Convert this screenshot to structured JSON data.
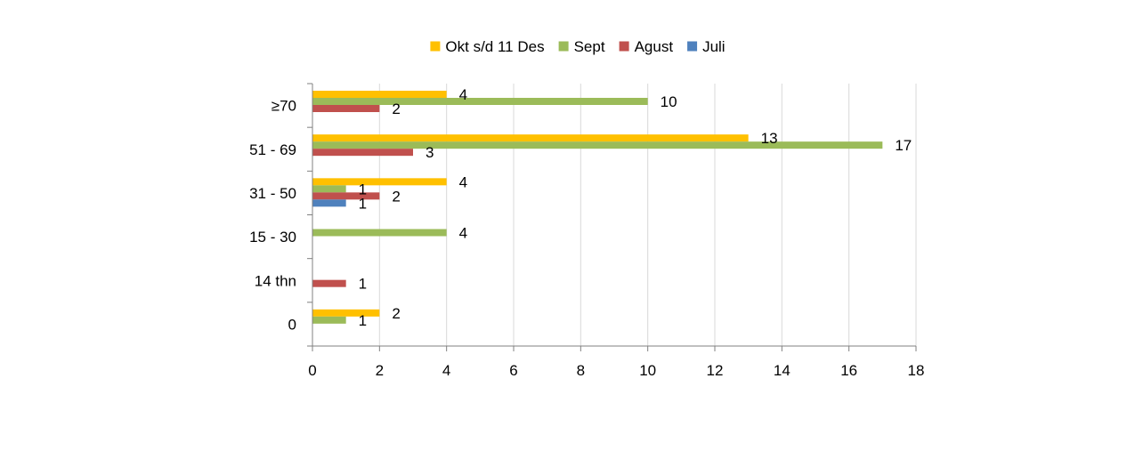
{
  "chart_data": {
    "type": "bar",
    "orientation": "horizontal",
    "categories": [
      "≥70",
      "51 - 69",
      "31 - 50",
      "15 - 30",
      "14 thn",
      "0"
    ],
    "series": [
      {
        "name": "Okt s/d 11 Des",
        "color": "#FFC000",
        "values": [
          4,
          13,
          4,
          null,
          null,
          2
        ]
      },
      {
        "name": "Sept",
        "color": "#9BBB59",
        "values": [
          10,
          17,
          1,
          4,
          null,
          1
        ]
      },
      {
        "name": "Agust",
        "color": "#C0504D",
        "values": [
          2,
          3,
          2,
          null,
          1,
          null
        ]
      },
      {
        "name": "Juli",
        "color": "#4F81BD",
        "values": [
          null,
          null,
          1,
          null,
          null,
          null
        ]
      }
    ],
    "xlim": [
      0,
      18
    ],
    "x_ticks": [
      0,
      2,
      4,
      6,
      8,
      10,
      12,
      14,
      16,
      18
    ],
    "grid": "vertical",
    "legend_position": "top",
    "data_labels": true
  }
}
